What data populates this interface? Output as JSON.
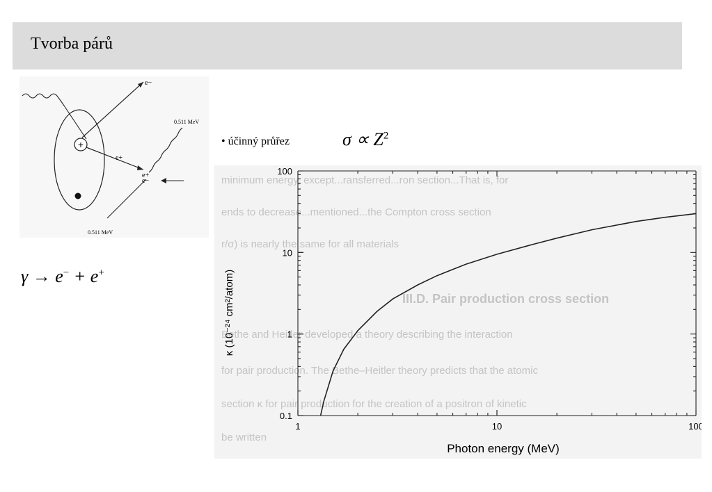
{
  "slide": {
    "title": "Tvorba párů"
  },
  "diagram": {
    "electron_label": "e−",
    "positron_label": "e+",
    "target_electron_label": "e−",
    "photon_energy_top": "0.511 MeV",
    "photon_energy_bottom": "0.511 MeV",
    "nucleus_symbol": "+"
  },
  "equation": {
    "lhs": "γ → e",
    "sup1": "−",
    "mid": " + e",
    "sup2": "+"
  },
  "bullet": {
    "text": "• účinný průřez"
  },
  "formula": {
    "text": "σ ∝ Z",
    "sup": "2"
  },
  "chart_data": {
    "type": "line",
    "title": "",
    "xlabel": "Photon energy    (MeV)",
    "ylabel": "κ    (10⁻²⁴ cm²/atom)",
    "x_scale": "log",
    "y_scale": "log",
    "xlim": [
      1,
      100
    ],
    "ylim": [
      0.1,
      100
    ],
    "x_ticks": [
      "1",
      "10",
      "100"
    ],
    "y_ticks": [
      "0.1",
      "1",
      "10",
      "100"
    ],
    "grid": false,
    "series": [
      {
        "name": "",
        "x": [
          1.3,
          1.35,
          1.5,
          1.7,
          2,
          2.5,
          3,
          4,
          5,
          7,
          10,
          15,
          20,
          30,
          50,
          70,
          100
        ],
        "y": [
          0.1,
          0.15,
          0.35,
          0.65,
          1.1,
          1.9,
          2.7,
          4.0,
          5.2,
          7.2,
          9.5,
          12.5,
          15,
          19,
          24,
          27,
          30
        ]
      }
    ],
    "background_text": [
      "minimum energy, except...ransferred...ron section...That is, for",
      "ends to decrease...mentioned...the Compton cross section",
      "r/σ) is nearly the same for all materials",
      "III.D.  Pair production cross section",
      "Bethe and Heitler developed a theory describing the interaction",
      "for pair production. The Bethe–Heitler theory predicts that the atomic",
      "section κ for pair production for the creation of a positron of kinetic",
      "be written"
    ]
  }
}
